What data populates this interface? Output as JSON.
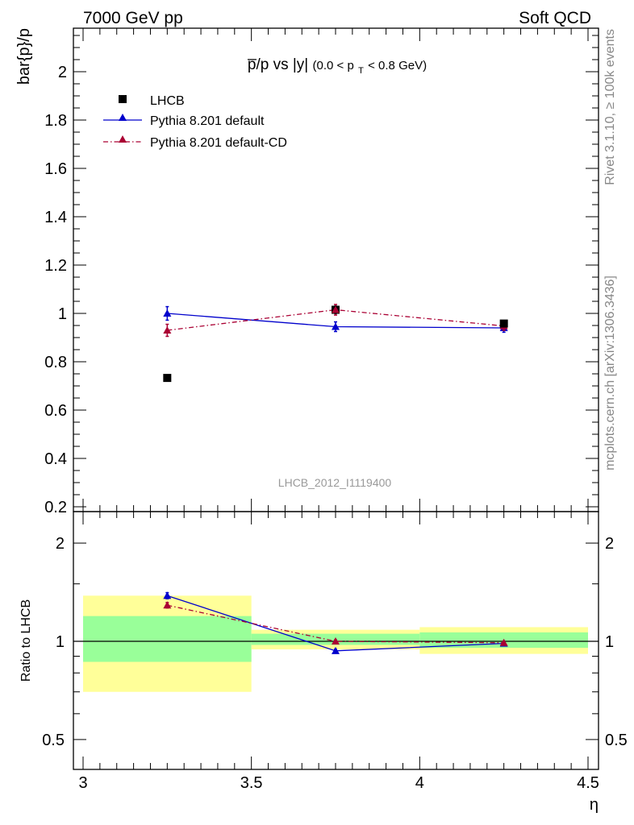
{
  "header": {
    "left": "7000 GeV pp",
    "right": "Soft QCD"
  },
  "side": {
    "top": "Rivet 3.1.10, ≥ 100k events",
    "bottom": "mcplots.cern.ch [arXiv:1306.3436]"
  },
  "plot_title": {
    "main": "p̅/p vs |y|",
    "cut_open": "(0.0 < p",
    "cut_sub": "T",
    "cut_close": " < 0.8 GeV)"
  },
  "watermark": "LHCB_2012_I1119400",
  "colors": {
    "data": "#000000",
    "default": "#0000cc",
    "cd": "#aa0033",
    "band_outer": "#ffff99",
    "band_inner": "#99ff99"
  },
  "chart_data": [
    {
      "type": "scatter",
      "panel": "main",
      "ylabel": "bar{p}/p",
      "xlim": [
        3.0,
        4.5
      ],
      "ylim": [
        0.18,
        2.18
      ],
      "yticks": [
        0.2,
        0.4,
        0.6,
        0.8,
        1,
        1.2,
        1.4,
        1.6,
        1.8,
        2
      ],
      "ytick_labels": [
        "0.2",
        "0.4",
        "0.6",
        "0.8",
        "1",
        "1.2",
        "1.4",
        "1.6",
        "1.8",
        "2"
      ],
      "legend": [
        "LHCB",
        "Pythia 8.201 default",
        "Pythia 8.201 default-CD"
      ],
      "legend_position": "top-left",
      "series": [
        {
          "name": "LHCB",
          "style": "square",
          "x": [
            3.25,
            3.75,
            4.25
          ],
          "y": [
            0.733,
            1.015,
            0.958
          ],
          "err": [
            0.008,
            0.015,
            0.012
          ]
        },
        {
          "name": "Pythia 8.201 default",
          "style": "triangle-solid",
          "x": [
            3.25,
            3.75,
            4.25
          ],
          "y": [
            1.0,
            0.945,
            0.94
          ],
          "err": [
            0.028,
            0.02,
            0.018
          ]
        },
        {
          "name": "Pythia 8.201 default-CD",
          "style": "triangle-dashdot",
          "x": [
            3.25,
            3.75,
            4.25
          ],
          "y": [
            0.93,
            1.015,
            0.948
          ],
          "err": [
            0.025,
            0.022,
            0.018
          ]
        }
      ]
    },
    {
      "type": "line",
      "panel": "ratio",
      "ylabel": "Ratio to LHCB",
      "xlabel": "η",
      "xlim": [
        3.0,
        4.5
      ],
      "ylim": [
        0.4,
        2.4
      ],
      "log_scale": true,
      "yticks": [
        0.5,
        1,
        2
      ],
      "ytick_labels": [
        "0.5",
        "1",
        "2"
      ],
      "xticks": [
        3,
        3.5,
        4,
        4.5
      ],
      "xtick_labels": [
        "3",
        "3.5",
        "4",
        "4.5"
      ],
      "bands": [
        {
          "x0": 3.0,
          "x1": 3.5,
          "outer": [
            0.7,
            1.38
          ],
          "inner": [
            0.865,
            1.195
          ]
        },
        {
          "x0": 3.5,
          "x1": 4.0,
          "outer": [
            0.945,
            1.085
          ],
          "inner": [
            0.975,
            1.055
          ]
        },
        {
          "x0": 4.0,
          "x1": 4.5,
          "outer": [
            0.915,
            1.105
          ],
          "inner": [
            0.955,
            1.065
          ]
        }
      ],
      "series": [
        {
          "name": "Pythia 8.201 default",
          "x": [
            3.25,
            3.75,
            4.25
          ],
          "y": [
            1.38,
            0.935,
            0.985
          ],
          "err": [
            0.03,
            0.01,
            0.01
          ]
        },
        {
          "name": "Pythia 8.201 default-CD",
          "x": [
            3.25,
            3.75,
            4.25
          ],
          "y": [
            1.29,
            1.0,
            0.99
          ],
          "err": [
            0.025,
            0.01,
            0.01
          ]
        }
      ]
    }
  ]
}
